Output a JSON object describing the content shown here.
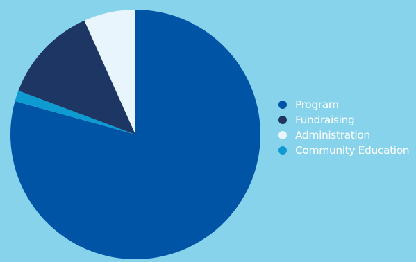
{
  "chart_data": {
    "type": "pie",
    "title": "",
    "start_angle_deg": 0,
    "direction": "clockwise",
    "series": [
      {
        "name": "Program",
        "value": 79.3,
        "color": "#0054a5"
      },
      {
        "name": "Community Education",
        "value": 1.4,
        "color": "#0e9bd2"
      },
      {
        "name": "Fundraising",
        "value": 12.6,
        "color": "#1d3664"
      },
      {
        "name": "Administration",
        "value": 6.7,
        "color": "#e8f5fc"
      }
    ],
    "legend": {
      "position": "right",
      "items": [
        {
          "label": "Program",
          "color": "#0054a5"
        },
        {
          "label": "Fundraising",
          "color": "#1d3664"
        },
        {
          "label": "Administration",
          "color": "#e8f5fc"
        },
        {
          "label": "Community Education",
          "color": "#0e9bd2"
        }
      ]
    },
    "background_color": "#87d3eb"
  }
}
